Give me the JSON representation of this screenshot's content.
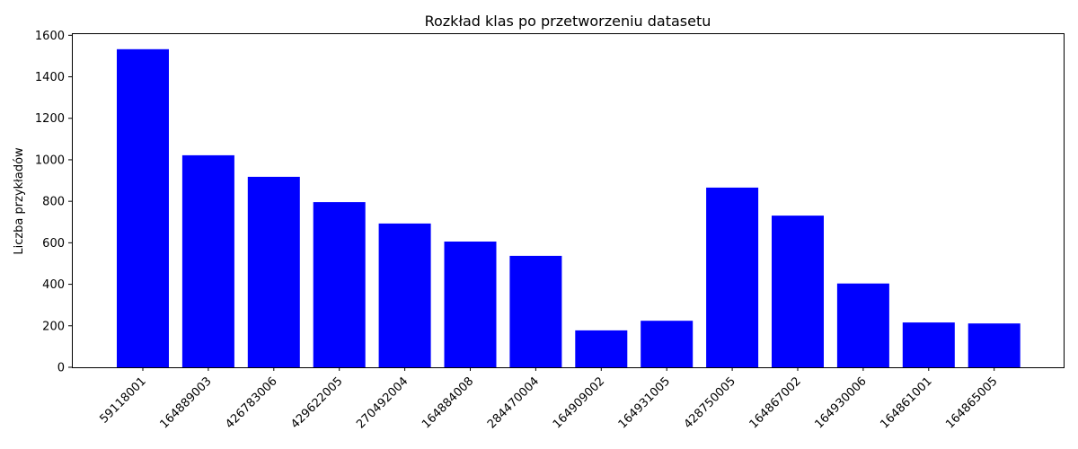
{
  "chart_data": {
    "type": "bar",
    "title": "Rozkład klas po przetworzeniu datasetu",
    "xlabel": "",
    "ylabel": "Liczba przykładów",
    "categories": [
      "59118001",
      "164889003",
      "426783006",
      "429622005",
      "270492004",
      "164884008",
      "284470004",
      "164909002",
      "164931005",
      "428750005",
      "164867002",
      "164930006",
      "164861001",
      "164865005"
    ],
    "values": [
      1533,
      1022,
      918,
      796,
      693,
      606,
      537,
      178,
      224,
      866,
      731,
      404,
      216,
      211
    ],
    "ylim": [
      0,
      1610
    ],
    "yticks": [
      0,
      200,
      400,
      600,
      800,
      1000,
      1200,
      1400,
      1600
    ],
    "bar_color": "#0000ff",
    "grid": false
  }
}
